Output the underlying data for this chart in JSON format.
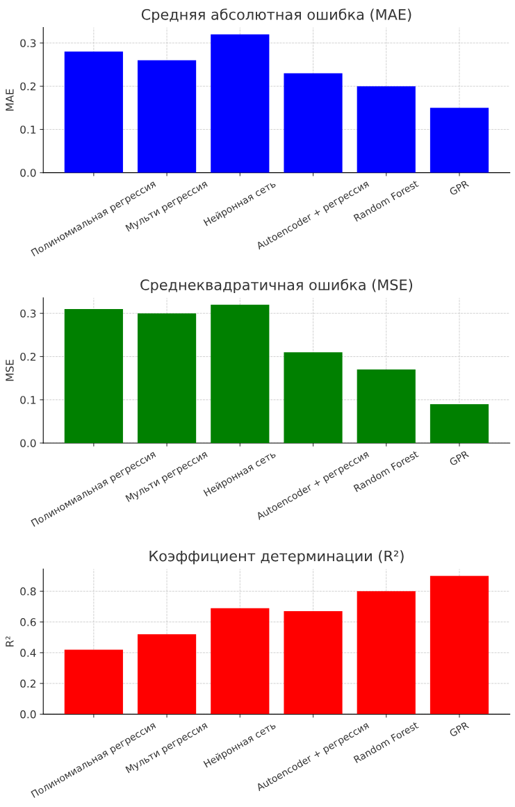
{
  "chart_data": [
    {
      "type": "bar",
      "title": "Средняя абсолютная ошибка (MAE)",
      "ylabel": "MAE",
      "categories": [
        "Полиномиальная регрессия",
        "Мульти регрессия",
        "Нейронная сеть",
        "Autoencoder + регрессия",
        "Random Forest",
        "GPR"
      ],
      "values": [
        0.28,
        0.26,
        0.32,
        0.23,
        0.2,
        0.15
      ],
      "color": "#0000ff",
      "ylim": [
        0,
        0.336
      ],
      "yticks": [
        {
          "value": 0,
          "label": "0.0"
        },
        {
          "value": 0.1,
          "label": "0.1"
        },
        {
          "value": 0.2,
          "label": "0.2"
        },
        {
          "value": 0.3,
          "label": "0.3"
        }
      ],
      "grid": true
    },
    {
      "type": "bar",
      "title": "Среднеквадратичная ошибка (MSE)",
      "ylabel": "MSE",
      "categories": [
        "Полиномиальная регрессия",
        "Мульти регрессия",
        "Нейронная сеть",
        "Autoencoder + регрессия",
        "Random Forest",
        "GPR"
      ],
      "values": [
        0.31,
        0.3,
        0.32,
        0.21,
        0.17,
        0.09
      ],
      "color": "#008000",
      "ylim": [
        0,
        0.336
      ],
      "yticks": [
        {
          "value": 0,
          "label": "0.0"
        },
        {
          "value": 0.1,
          "label": "0.1"
        },
        {
          "value": 0.2,
          "label": "0.2"
        },
        {
          "value": 0.3,
          "label": "0.3"
        }
      ],
      "grid": true
    },
    {
      "type": "bar",
      "title": "Коэффициент детерминации (R²)",
      "ylabel": "R²",
      "categories": [
        "Полиномиальная регрессия",
        "Мульти регрессия",
        "Нейронная сеть",
        "Autoencoder + регрессия",
        "Random Forest",
        "GPR"
      ],
      "values": [
        0.42,
        0.52,
        0.69,
        0.67,
        0.8,
        0.9
      ],
      "color": "#ff0000",
      "ylim": [
        0,
        0.945
      ],
      "yticks": [
        {
          "value": 0,
          "label": "0.0"
        },
        {
          "value": 0.2,
          "label": "0.2"
        },
        {
          "value": 0.4,
          "label": "0.4"
        },
        {
          "value": 0.6,
          "label": "0.6"
        },
        {
          "value": 0.8,
          "label": "0.8"
        }
      ],
      "grid": true
    }
  ]
}
